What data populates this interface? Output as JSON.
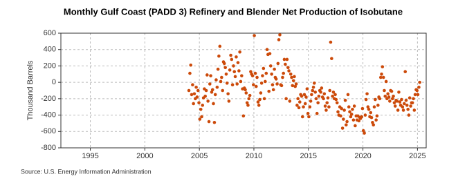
{
  "chart_data": {
    "type": "scatter",
    "title": "Monthly Gulf Coast (PADD 3) Refinery and Blender Net Production of Isobutane",
    "y_label": "Thousand Barrels",
    "source": "Source: U.S. Energy Information Administration",
    "color": "#cc4a0a",
    "grid": true,
    "xlim": [
      1992.3,
      2025.8
    ],
    "xticks": [
      1995,
      2000,
      2005,
      2010,
      2015,
      2020,
      2025
    ],
    "ylim": [
      -800,
      600
    ],
    "yticks": [
      -800,
      -600,
      -400,
      -200,
      0,
      200,
      400,
      600
    ],
    "x": [
      2004.04,
      2004.13,
      2004.21,
      2004.29,
      2004.38,
      2004.46,
      2004.54,
      2004.63,
      2004.71,
      2004.79,
      2004.88,
      2004.96,
      2005.04,
      2005.13,
      2005.21,
      2005.29,
      2005.38,
      2005.46,
      2005.54,
      2005.63,
      2005.71,
      2005.79,
      2005.88,
      2005.96,
      2006.04,
      2006.13,
      2006.21,
      2006.29,
      2006.38,
      2006.46,
      2006.54,
      2006.63,
      2006.71,
      2006.79,
      2006.88,
      2006.96,
      2007.04,
      2007.13,
      2007.21,
      2007.29,
      2007.38,
      2007.46,
      2007.54,
      2007.63,
      2007.71,
      2007.79,
      2007.88,
      2007.96,
      2008.04,
      2008.13,
      2008.21,
      2008.29,
      2008.38,
      2008.46,
      2008.54,
      2008.63,
      2008.71,
      2008.79,
      2008.88,
      2008.96,
      2009.04,
      2009.13,
      2009.21,
      2009.29,
      2009.38,
      2009.46,
      2009.54,
      2009.63,
      2009.71,
      2009.79,
      2009.88,
      2009.96,
      2010.04,
      2010.13,
      2010.21,
      2010.29,
      2010.38,
      2010.46,
      2010.54,
      2010.63,
      2010.71,
      2010.79,
      2010.88,
      2010.96,
      2011.04,
      2011.13,
      2011.21,
      2011.29,
      2011.38,
      2011.46,
      2011.54,
      2011.63,
      2011.71,
      2011.79,
      2011.88,
      2011.96,
      2012.04,
      2012.13,
      2012.21,
      2012.29,
      2012.38,
      2012.46,
      2012.54,
      2012.63,
      2012.71,
      2012.79,
      2012.88,
      2012.96,
      2013.04,
      2013.13,
      2013.21,
      2013.29,
      2013.38,
      2013.46,
      2013.54,
      2013.63,
      2013.71,
      2013.79,
      2013.88,
      2013.96,
      2014.04,
      2014.13,
      2014.21,
      2014.29,
      2014.38,
      2014.46,
      2014.54,
      2014.63,
      2014.71,
      2014.79,
      2014.88,
      2014.96,
      2015.04,
      2015.13,
      2015.21,
      2015.29,
      2015.38,
      2015.46,
      2015.54,
      2015.63,
      2015.71,
      2015.79,
      2015.88,
      2015.96,
      2016.04,
      2016.13,
      2016.21,
      2016.29,
      2016.38,
      2016.46,
      2016.54,
      2016.63,
      2016.71,
      2016.79,
      2016.88,
      2016.96,
      2017.04,
      2017.13,
      2017.21,
      2017.29,
      2017.38,
      2017.46,
      2017.54,
      2017.63,
      2017.71,
      2017.79,
      2017.88,
      2017.96,
      2018.04,
      2018.13,
      2018.21,
      2018.29,
      2018.38,
      2018.46,
      2018.54,
      2018.63,
      2018.71,
      2018.79,
      2018.88,
      2018.96,
      2019.04,
      2019.13,
      2019.21,
      2019.29,
      2019.38,
      2019.46,
      2019.54,
      2019.63,
      2019.71,
      2019.79,
      2019.88,
      2019.96,
      2020.04,
      2020.13,
      2020.21,
      2020.29,
      2020.38,
      2020.46,
      2020.54,
      2020.63,
      2020.71,
      2020.79,
      2020.88,
      2020.96,
      2021.04,
      2021.13,
      2021.21,
      2021.29,
      2021.38,
      2021.46,
      2021.54,
      2021.63,
      2021.71,
      2021.79,
      2021.88,
      2021.96,
      2022.04,
      2022.13,
      2022.21,
      2022.29,
      2022.38,
      2022.46,
      2022.54,
      2022.63,
      2022.71,
      2022.79,
      2022.88,
      2022.96,
      2023.04,
      2023.13,
      2023.21,
      2023.29,
      2023.38,
      2023.46,
      2023.54,
      2023.63,
      2023.71,
      2023.79,
      2023.88,
      2023.96,
      2024.04,
      2024.13,
      2024.21,
      2024.29,
      2024.38,
      2024.46,
      2024.54,
      2024.63,
      2024.71,
      2024.79,
      2024.88,
      2024.96,
      2025.04,
      2025.13,
      2025.21
    ],
    "values": [
      -100,
      110,
      210,
      -150,
      -30,
      -260,
      -140,
      -200,
      -60,
      -180,
      -100,
      -250,
      -450,
      -330,
      -420,
      -280,
      -190,
      -80,
      -170,
      -100,
      90,
      -230,
      -480,
      -20,
      80,
      -120,
      -90,
      -260,
      -490,
      -150,
      30,
      -60,
      160,
      320,
      440,
      10,
      60,
      -100,
      250,
      230,
      180,
      100,
      -10,
      -140,
      -230,
      150,
      330,
      280,
      -30,
      200,
      130,
      70,
      310,
      -20,
      240,
      140,
      370,
      10,
      80,
      -80,
      -410,
      -70,
      -90,
      -130,
      -250,
      -280,
      -200,
      -160,
      130,
      100,
      80,
      -30,
      570,
      110,
      -50,
      60,
      -240,
      -280,
      -210,
      -130,
      -10,
      80,
      170,
      -200,
      10,
      110,
      400,
      340,
      -110,
      350,
      200,
      100,
      -30,
      -90,
      160,
      60,
      40,
      -20,
      230,
      520,
      580,
      -30,
      -40,
      60,
      110,
      280,
      220,
      -200,
      280,
      180,
      140,
      -230,
      100,
      60,
      -40,
      20,
      70,
      -50,
      -20,
      -280,
      -200,
      -310,
      -240,
      -150,
      -170,
      -420,
      -300,
      -150,
      -260,
      -180,
      -80,
      -380,
      -420,
      -300,
      -230,
      -150,
      -100,
      -60,
      -10,
      -120,
      -200,
      -380,
      -250,
      -170,
      -100,
      -120,
      -70,
      -180,
      -200,
      -140,
      -290,
      -340,
      -250,
      -190,
      -300,
      -100,
      490,
      290,
      -170,
      -120,
      -200,
      -150,
      -210,
      -250,
      -360,
      -400,
      -300,
      -410,
      -320,
      -560,
      -450,
      -340,
      -220,
      -520,
      -480,
      -150,
      -300,
      -360,
      -420,
      -390,
      -330,
      -460,
      -290,
      -530,
      -410,
      -460,
      -410,
      -470,
      -430,
      -440,
      -420,
      -320,
      -590,
      -620,
      -400,
      -210,
      -140,
      -300,
      -330,
      -420,
      -370,
      -430,
      -490,
      -520,
      -300,
      -210,
      -460,
      -410,
      -280,
      -180,
      -200,
      60,
      100,
      190,
      60,
      -100,
      -170,
      10,
      -200,
      -140,
      -180,
      -230,
      -100,
      -110,
      -200,
      -170,
      -250,
      -290,
      -220,
      -230,
      -340,
      -120,
      -240,
      -280,
      -210,
      -300,
      -340,
      -260,
      130,
      -220,
      -280,
      -330,
      -400,
      -190,
      -290,
      -250,
      -250,
      -200,
      -340,
      -150,
      -90,
      -100,
      -150,
      -60,
      0
    ]
  }
}
